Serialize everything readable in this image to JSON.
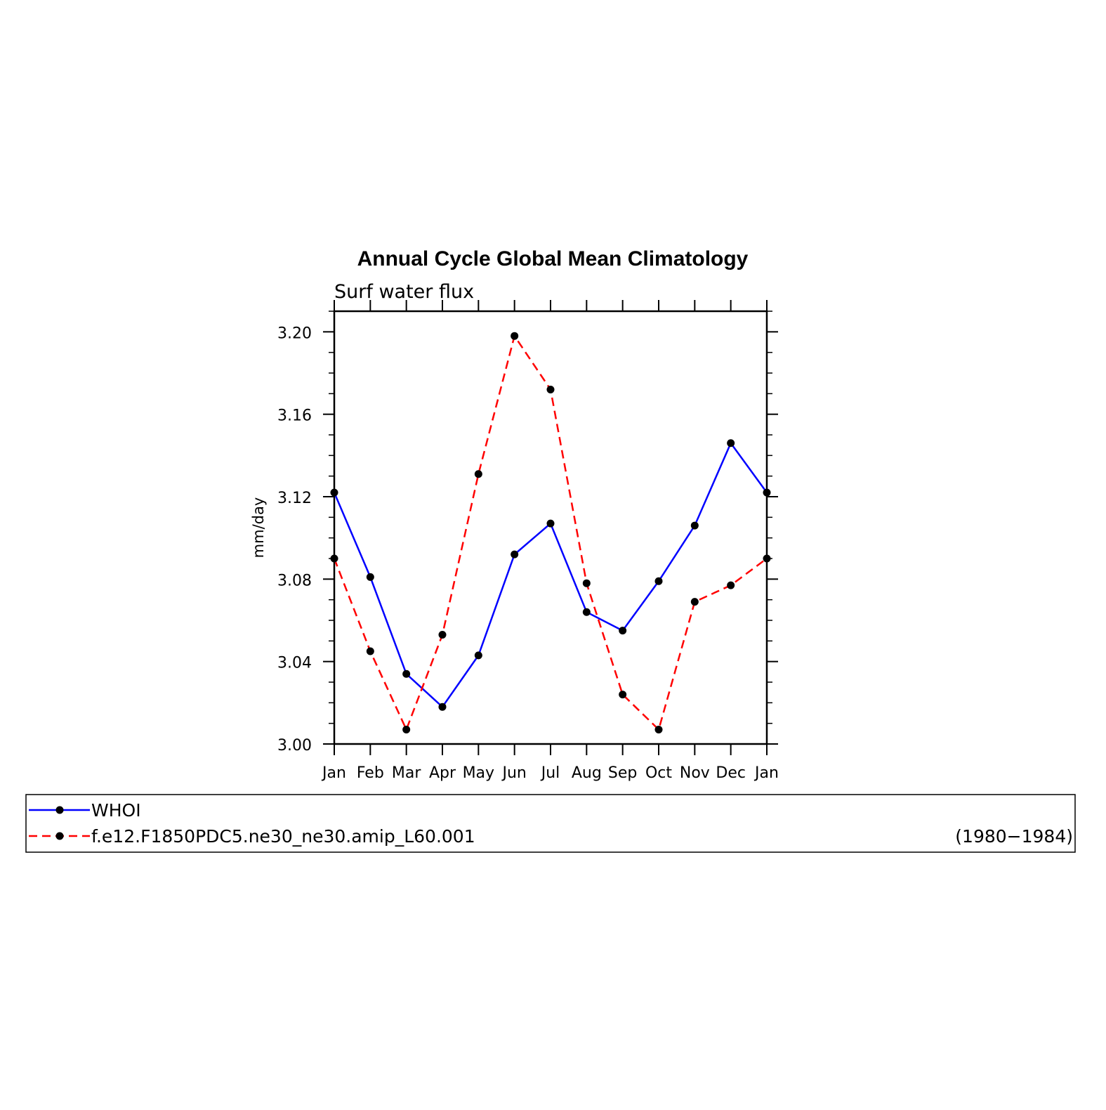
{
  "chart_data": {
    "type": "line",
    "title": "Annual Cycle Global Mean Climatology",
    "subtitle": "Surf water flux",
    "ylabel": "mm/day",
    "xlabel": "",
    "categories": [
      "Jan",
      "Feb",
      "Mar",
      "Apr",
      "May",
      "Jun",
      "Jul",
      "Aug",
      "Sep",
      "Oct",
      "Nov",
      "Dec",
      "Jan"
    ],
    "ylim": [
      3.0,
      3.21
    ],
    "yticks": [
      "3.00",
      "3.04",
      "3.08",
      "3.12",
      "3.16",
      "3.20"
    ],
    "grid": false,
    "legend_placement": "below",
    "series": [
      {
        "name": "WHOI",
        "color": "#0000ff",
        "dash": "solid",
        "marker": "filled-circle",
        "values": [
          3.122,
          3.081,
          3.034,
          3.018,
          3.043,
          3.092,
          3.107,
          3.064,
          3.055,
          3.079,
          3.106,
          3.146,
          3.122
        ]
      },
      {
        "name": "f.e12.F1850PDC5.ne30_ne30.amip_L60.001",
        "color": "#ff0000",
        "dash": "dashed",
        "marker": "filled-circle",
        "values": [
          3.09,
          3.045,
          3.007,
          3.053,
          3.131,
          3.198,
          3.172,
          3.078,
          3.024,
          3.007,
          3.069,
          3.077,
          3.09
        ]
      }
    ],
    "period_label": "(1980−1984)"
  }
}
